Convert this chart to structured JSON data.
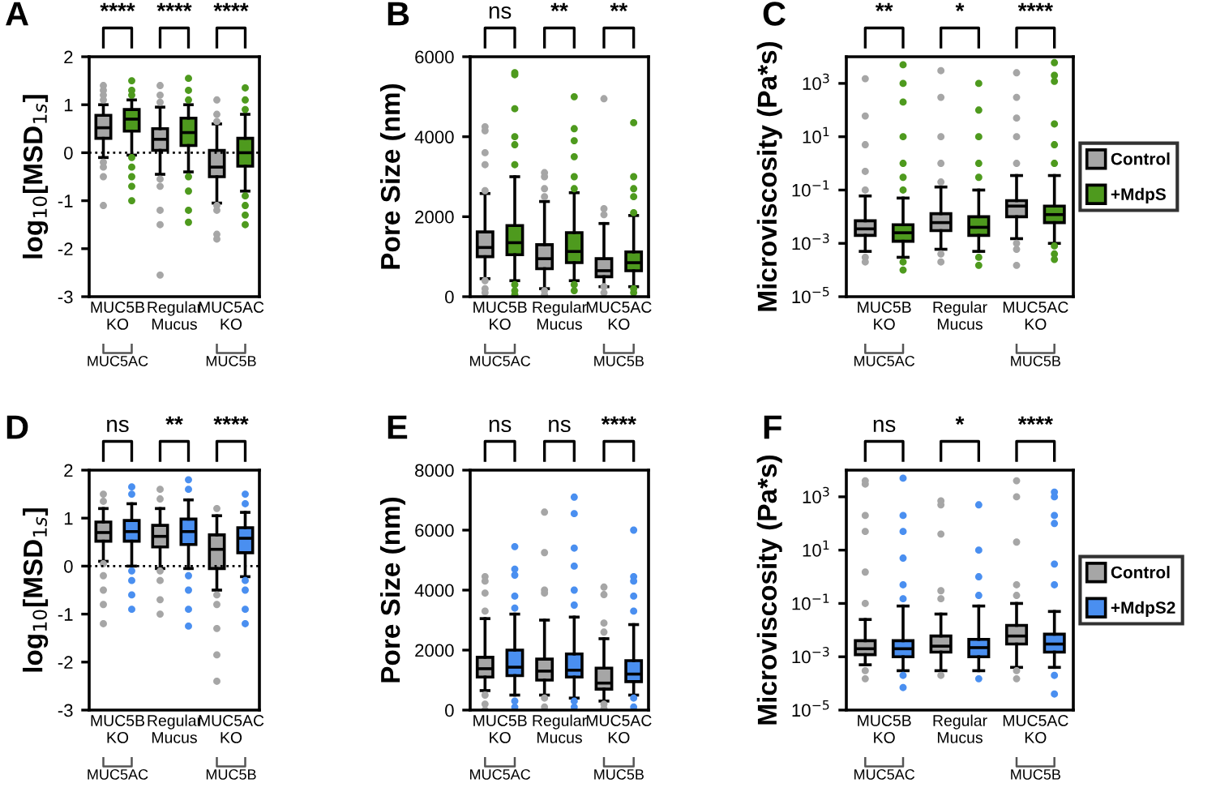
{
  "chart_data": [
    {
      "type": "box",
      "ylabel": "log$_{10}$[MSD$_{1s}$]",
      "categories": [
        "MUC5B\nKO",
        "Regular\nMucus",
        "MUC5AC\nKO"
      ],
      "ylim": [
        -3,
        2
      ],
      "yticks": [
        -3,
        -2,
        -1,
        0,
        1,
        2
      ],
      "ref_lines": [
        {
          "axis": "y",
          "value": 0,
          "line_style": "dotted"
        }
      ],
      "annotations": [
        "A",
        "****",
        "****",
        "****",
        "MUC5AC",
        "MUC5B"
      ],
      "series": [
        {
          "color": "#a6a6a6",
          "boxes": [
            {
              "low": -0.1,
              "q1": 0.3,
              "median": 0.52,
              "q3": 0.78,
              "high": 1.0,
              "outliers": [
                1.4,
                1.3,
                1.2,
                1.1,
                -0.2,
                -0.3,
                -0.5,
                -1.1
              ]
            },
            {
              "low": -0.45,
              "q1": 0.05,
              "median": 0.28,
              "q3": 0.5,
              "high": 0.95,
              "outliers": [
                1.4,
                1.2,
                1.05,
                -0.55,
                -0.7,
                -1.2,
                -1.5,
                -2.55
              ]
            },
            {
              "low": -1.05,
              "q1": -0.5,
              "median": -0.3,
              "q3": 0.05,
              "high": 0.6,
              "outliers": [
                1.1,
                0.8,
                0.65,
                -1.1,
                -1.2,
                -1.7,
                -1.8
              ]
            }
          ]
        },
        {
          "color": "#4e9a1e",
          "boxes": [
            {
              "low": -0.05,
              "q1": 0.45,
              "median": 0.7,
              "q3": 0.9,
              "high": 1.1,
              "outliers": [
                1.5,
                1.3,
                1.2,
                -0.1,
                -0.3,
                -0.5,
                -0.7,
                -1.0
              ]
            },
            {
              "low": -0.4,
              "q1": 0.15,
              "median": 0.42,
              "q3": 0.72,
              "high": 1.0,
              "outliers": [
                1.55,
                1.3,
                1.1,
                -0.5,
                -0.8,
                -1.2,
                -1.45
              ]
            },
            {
              "low": -0.8,
              "q1": -0.28,
              "median": 0.0,
              "q3": 0.3,
              "high": 0.8,
              "outliers": [
                1.35,
                1.1,
                0.9,
                -0.9,
                -1.1,
                -1.3,
                -1.5
              ]
            }
          ]
        }
      ]
    },
    {
      "type": "box",
      "ylabel": "Pore Size (nm)",
      "categories": [
        "MUC5B\nKO",
        "Regular\nMucus",
        "MUC5AC\nKO"
      ],
      "ylim": [
        0,
        6000
      ],
      "yticks": [
        0,
        2000,
        4000,
        6000
      ],
      "annotations": [
        "B",
        "ns",
        "**",
        "**",
        "MUC5AC",
        "MUC5B"
      ],
      "series": [
        {
          "color": "#a6a6a6",
          "boxes": [
            {
              "low": 450,
              "q1": 1000,
              "median": 1230,
              "q3": 1620,
              "high": 2580,
              "outliers": [
                4250,
                4150,
                3600,
                3300,
                2650,
                400,
                200,
                100
              ]
            },
            {
              "low": 200,
              "q1": 700,
              "median": 950,
              "q3": 1300,
              "high": 2380,
              "outliers": [
                3100,
                3000,
                2700,
                2500,
                150,
                50
              ]
            },
            {
              "low": 250,
              "q1": 500,
              "median": 650,
              "q3": 950,
              "high": 1830,
              "outliers": [
                4950,
                2200,
                2050,
                250,
                100
              ]
            }
          ]
        },
        {
          "color": "#4e9a1e",
          "boxes": [
            {
              "low": 400,
              "q1": 1050,
              "median": 1350,
              "q3": 1780,
              "high": 3000,
              "outliers": [
                5600,
                5550,
                4700,
                4000,
                3800,
                3300,
                300,
                150,
                50
              ]
            },
            {
              "low": 400,
              "q1": 850,
              "median": 1130,
              "q3": 1600,
              "high": 2600,
              "outliers": [
                5000,
                4200,
                3900,
                3500,
                3000,
                2700,
                300,
                150
              ]
            },
            {
              "low": 250,
              "q1": 650,
              "median": 850,
              "q3": 1120,
              "high": 2030,
              "outliers": [
                4350,
                3000,
                2700,
                2500,
                2100,
                200,
                100
              ]
            }
          ]
        }
      ]
    },
    {
      "type": "box",
      "ylabel": "Microviscosity (Pa*s)",
      "categories": [
        "MUC5B\nKO",
        "Regular\nMucus",
        "MUC5AC\nKO"
      ],
      "log": true,
      "ylim": [
        1e-05,
        10000.0
      ],
      "yticks": [
        {
          "value": 1e-05,
          "label": "10$^{−5}$"
        },
        {
          "value": 0.001,
          "label": "10$^{−3}$"
        },
        {
          "value": 0.1,
          "label": "10$^{−1}$"
        },
        {
          "value": 10,
          "label": "10$^{1}$"
        },
        {
          "value": 1000,
          "label": "10$^{3}$"
        }
      ],
      "legend": "right",
      "annotations": [
        "C",
        "**",
        "*",
        "****",
        "MUC5AC",
        "MUC5B"
      ],
      "series": [
        {
          "name": "Control",
          "color": "#a6a6a6",
          "boxes": [
            {
              "low": 0.0005,
              "q1": 0.002,
              "median": 0.0035,
              "q3": 0.007,
              "high": 0.06,
              "outliers": [
                1500,
                60,
                5,
                0.5,
                0.1,
                0.0003,
                0.0002
              ]
            },
            {
              "low": 0.0006,
              "q1": 0.003,
              "median": 0.006,
              "q3": 0.013,
              "high": 0.13,
              "outliers": [
                3000,
                300,
                10,
                1,
                0.2,
                0.0004,
                0.0002
              ]
            },
            {
              "low": 0.0015,
              "q1": 0.01,
              "median": 0.025,
              "q3": 0.04,
              "high": 0.35,
              "outliers": [
                2500,
                300,
                50,
                10,
                1,
                0.001,
                0.0006,
                0.00015
              ]
            }
          ]
        },
        {
          "name": "+MdpS",
          "color": "#4e9a1e",
          "boxes": [
            {
              "low": 0.0003,
              "q1": 0.0012,
              "median": 0.0025,
              "q3": 0.005,
              "high": 0.05,
              "outliers": [
                5000,
                1000,
                200,
                10,
                1,
                0.3,
                0.1,
                0.0002,
                0.0001
              ]
            },
            {
              "low": 0.0005,
              "q1": 0.002,
              "median": 0.004,
              "q3": 0.01,
              "high": 0.1,
              "outliers": [
                1000,
                100,
                10,
                1,
                0.3,
                0.0003,
                0.00015
              ]
            },
            {
              "low": 0.001,
              "q1": 0.006,
              "median": 0.012,
              "q3": 0.025,
              "high": 0.35,
              "outliers": [
                6000,
                2000,
                1200,
                30,
                5,
                1,
                0.0008,
                0.0004,
                0.00025
              ]
            }
          ]
        }
      ]
    },
    {
      "type": "box",
      "ylabel": "log$_{10}$[MSD$_{1s}$]",
      "categories": [
        "MUC5B\nKO",
        "Regular\nMucus",
        "MUC5AC\nKO"
      ],
      "ylim": [
        -3,
        2
      ],
      "yticks": [
        -3,
        -2,
        -1,
        0,
        1,
        2
      ],
      "ref_lines": [
        {
          "axis": "y",
          "value": 0,
          "line_style": "dotted"
        }
      ],
      "annotations": [
        "D",
        "ns",
        "**",
        "****",
        "MUC5AC",
        "MUC5B"
      ],
      "series": [
        {
          "color": "#a6a6a6",
          "boxes": [
            {
              "low": 0.1,
              "q1": 0.52,
              "median": 0.7,
              "q3": 0.92,
              "high": 1.2,
              "outliers": [
                1.5,
                1.35,
                0.05,
                -0.2,
                -0.5,
                -0.8,
                -1.2
              ]
            },
            {
              "low": -0.05,
              "q1": 0.4,
              "median": 0.62,
              "q3": 0.85,
              "high": 1.2,
              "outliers": [
                1.6,
                1.4,
                -0.1,
                -0.3,
                -0.7,
                -1.0
              ]
            },
            {
              "low": -0.5,
              "q1": -0.05,
              "median": 0.35,
              "q3": 0.65,
              "high": 1.05,
              "outliers": [
                1.2,
                -0.6,
                -0.8,
                -1.3,
                -1.85,
                -2.4
              ]
            }
          ]
        },
        {
          "color": "#4a8ff0",
          "boxes": [
            {
              "low": 0.0,
              "q1": 0.52,
              "median": 0.72,
              "q3": 0.95,
              "high": 1.3,
              "outliers": [
                1.65,
                1.5,
                -0.1,
                -0.3,
                -0.6,
                -0.9
              ]
            },
            {
              "low": -0.05,
              "q1": 0.45,
              "median": 0.72,
              "q3": 0.98,
              "high": 1.38,
              "outliers": [
                1.8,
                1.6,
                -0.2,
                -0.5,
                -0.9,
                -1.25
              ]
            },
            {
              "low": -0.22,
              "q1": 0.28,
              "median": 0.58,
              "q3": 0.8,
              "high": 1.12,
              "outliers": [
                1.5,
                1.3,
                -0.3,
                -0.5,
                -0.9,
                -1.2
              ]
            }
          ]
        }
      ]
    },
    {
      "type": "box",
      "ylabel": "Pore Size (nm)",
      "categories": [
        "MUC5B\nKO",
        "Regular\nMucus",
        "MUC5AC\nKO"
      ],
      "ylim": [
        0,
        8000
      ],
      "yticks": [
        0,
        2000,
        4000,
        6000,
        8000
      ],
      "annotations": [
        "E",
        "ns",
        "ns",
        "****",
        "MUC5AC",
        "MUC5B"
      ],
      "series": [
        {
          "color": "#a6a6a6",
          "boxes": [
            {
              "low": 650,
              "q1": 1100,
              "median": 1380,
              "q3": 1760,
              "high": 3050,
              "outliers": [
                4450,
                4300,
                3900,
                3300,
                500,
                200,
                0
              ]
            },
            {
              "low": 500,
              "q1": 1000,
              "median": 1300,
              "q3": 1700,
              "high": 3000,
              "outliers": [
                6600,
                5250,
                4000,
                3900,
                400,
                100
              ]
            },
            {
              "low": 300,
              "q1": 700,
              "median": 900,
              "q3": 1400,
              "high": 2380,
              "outliers": [
                4100,
                3850,
                2900,
                2600,
                200,
                50
              ]
            }
          ]
        },
        {
          "color": "#4a8ff0",
          "boxes": [
            {
              "low": 500,
              "q1": 1150,
              "median": 1430,
              "q3": 2000,
              "high": 3200,
              "outliers": [
                5450,
                4700,
                4500,
                3800,
                3400,
                300,
                100
              ]
            },
            {
              "low": 400,
              "q1": 1100,
              "median": 1330,
              "q3": 1870,
              "high": 3100,
              "outliers": [
                7100,
                6550,
                5400,
                4800,
                4000,
                3500,
                300,
                100
              ]
            },
            {
              "low": 500,
              "q1": 950,
              "median": 1200,
              "q3": 1650,
              "high": 2850,
              "outliers": [
                6000,
                4450,
                4300,
                3800,
                3300,
                400,
                100
              ]
            }
          ]
        }
      ]
    },
    {
      "type": "box",
      "ylabel": "Microviscosity (Pa*s)",
      "categories": [
        "MUC5B\nKO",
        "Regular\nMucus",
        "MUC5AC\nKO"
      ],
      "log": true,
      "ylim": [
        1e-05,
        10000.0
      ],
      "yticks": [
        {
          "value": 1e-05,
          "label": "10$^{−5}$"
        },
        {
          "value": 0.001,
          "label": "10$^{−3}$"
        },
        {
          "value": 0.1,
          "label": "10$^{−1}$"
        },
        {
          "value": 10,
          "label": "10$^{1}$"
        },
        {
          "value": 1000,
          "label": "10$^{3}$"
        }
      ],
      "legend": "right",
      "annotations": [
        "F",
        "ns",
        "*",
        "****",
        "MUC5AC",
        "MUC5B"
      ],
      "series": [
        {
          "name": "Control",
          "color": "#a6a6a6",
          "boxes": [
            {
              "low": 0.0005,
              "q1": 0.0012,
              "median": 0.002,
              "q3": 0.004,
              "high": 0.025,
              "outliers": [
                4000,
                3000,
                200,
                50,
                1.5,
                0.1,
                0.0003,
                0.00015
              ]
            },
            {
              "low": 0.0003,
              "q1": 0.0015,
              "median": 0.0025,
              "q3": 0.006,
              "high": 0.04,
              "outliers": [
                700,
                500,
                40,
                0.3,
                0.15,
                0.0002
              ]
            },
            {
              "low": 0.0004,
              "q1": 0.003,
              "median": 0.006,
              "q3": 0.015,
              "high": 0.1,
              "outliers": [
                4000,
                1000,
                20,
                0.5,
                0.2,
                0.0003,
                0.00015
              ]
            }
          ]
        },
        {
          "name": "+MdpS2",
          "color": "#4a8ff0",
          "boxes": [
            {
              "low": 0.0003,
              "q1": 0.001,
              "median": 0.002,
              "q3": 0.004,
              "high": 0.08,
              "outliers": [
                5000,
                200,
                50,
                5,
                0.5,
                0.15,
                0.0002,
                7e-05
              ]
            },
            {
              "low": 0.0003,
              "q1": 0.001,
              "median": 0.0022,
              "q3": 0.0045,
              "high": 0.08,
              "outliers": [
                500,
                10,
                1,
                0.2,
                0.00015
              ]
            },
            {
              "low": 0.0004,
              "q1": 0.0015,
              "median": 0.003,
              "q3": 0.007,
              "high": 0.05,
              "outliers": [
                1500,
                1000,
                200,
                100,
                3,
                0.5,
                0.0002,
                4e-05
              ]
            }
          ]
        }
      ]
    }
  ]
}
